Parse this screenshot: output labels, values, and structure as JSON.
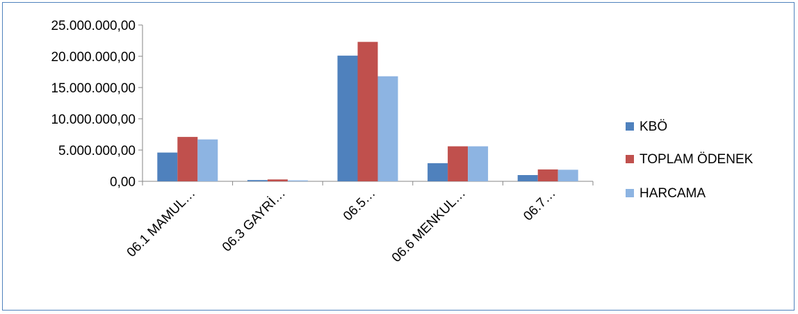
{
  "chart_data": {
    "type": "bar",
    "title": "",
    "xlabel": "",
    "ylabel": "",
    "categories": [
      "06.1 MAMUL…",
      "06.3 GAYRİ…",
      "06.5…",
      "06.6 MENKUL…",
      "06.7…"
    ],
    "series": [
      {
        "name": "KBÖ",
        "color": "#4f81bd",
        "values": [
          4600000,
          200000,
          20100000,
          2900000,
          1000000
        ]
      },
      {
        "name": "TOPLAM ÖDENEK",
        "color": "#c0504d",
        "values": [
          7100000,
          300000,
          22300000,
          5600000,
          1900000
        ]
      },
      {
        "name": "HARCAMA",
        "color": "#8db4e2",
        "values": [
          6700000,
          150000,
          16800000,
          5600000,
          1850000
        ]
      }
    ],
    "ylim": [
      0,
      25000000
    ],
    "yticks": [
      0,
      5000000,
      10000000,
      15000000,
      20000000,
      25000000
    ],
    "ytick_labels": [
      "0,00",
      "5.000.000,00",
      "10.000.000,00",
      "15.000.000,00",
      "20.000.000,00",
      "25.000.000,00"
    ],
    "grid": false,
    "legend_position": "right"
  }
}
